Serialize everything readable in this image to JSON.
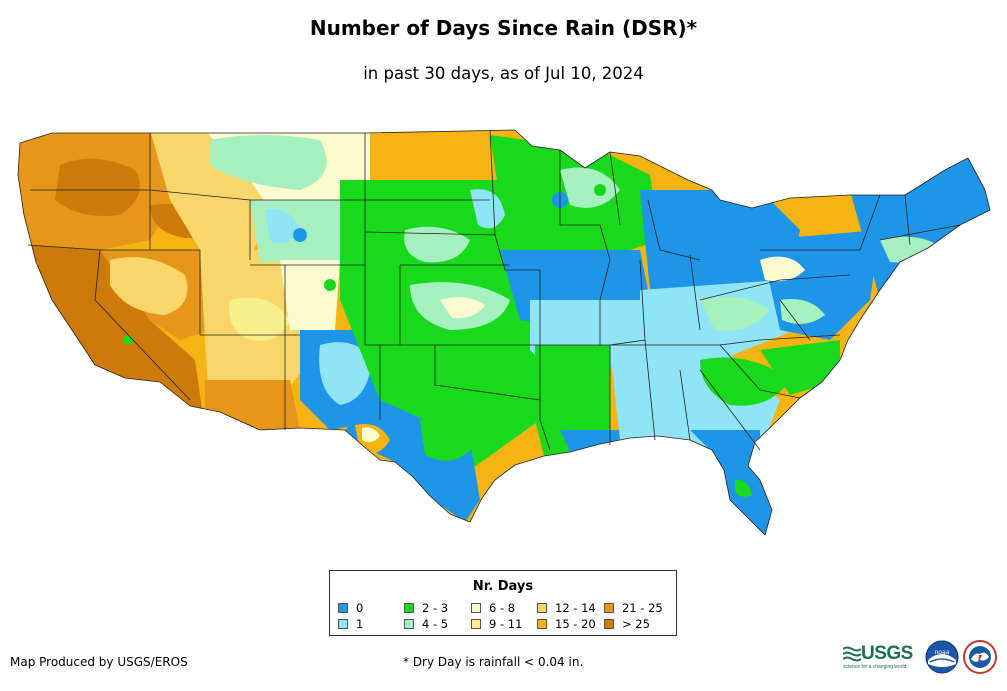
{
  "title": "Number of Days Since Rain (DSR)*",
  "subtitle": "in past 30 days, as of Jul 10, 2024",
  "legend": {
    "title": "Nr. Days",
    "items": [
      {
        "label": "0",
        "color": "#1f95e8"
      },
      {
        "label": "1",
        "color": "#8fe4f5"
      },
      {
        "label": "2 - 3",
        "color": "#19d91c"
      },
      {
        "label": "4 - 5",
        "color": "#a6f0c0"
      },
      {
        "label": "6 - 8",
        "color": "#fbfbd0"
      },
      {
        "label": "9 - 11",
        "color": "#f9ee8c"
      },
      {
        "label": "12 - 14",
        "color": "#f8d66a"
      },
      {
        "label": "15 - 20",
        "color": "#f5b414"
      },
      {
        "label": "21 - 25",
        "color": "#e6961b"
      },
      {
        "label": "> 25",
        "color": "#cc7a0a"
      }
    ]
  },
  "credit": "Map Produced by USGS/EROS",
  "footnote": "* Dry Day is rainfall < 0.04 in.",
  "logos": {
    "usgs": "USGS",
    "usgs_tagline": "science for a changing world",
    "noaa": "noaa"
  }
}
